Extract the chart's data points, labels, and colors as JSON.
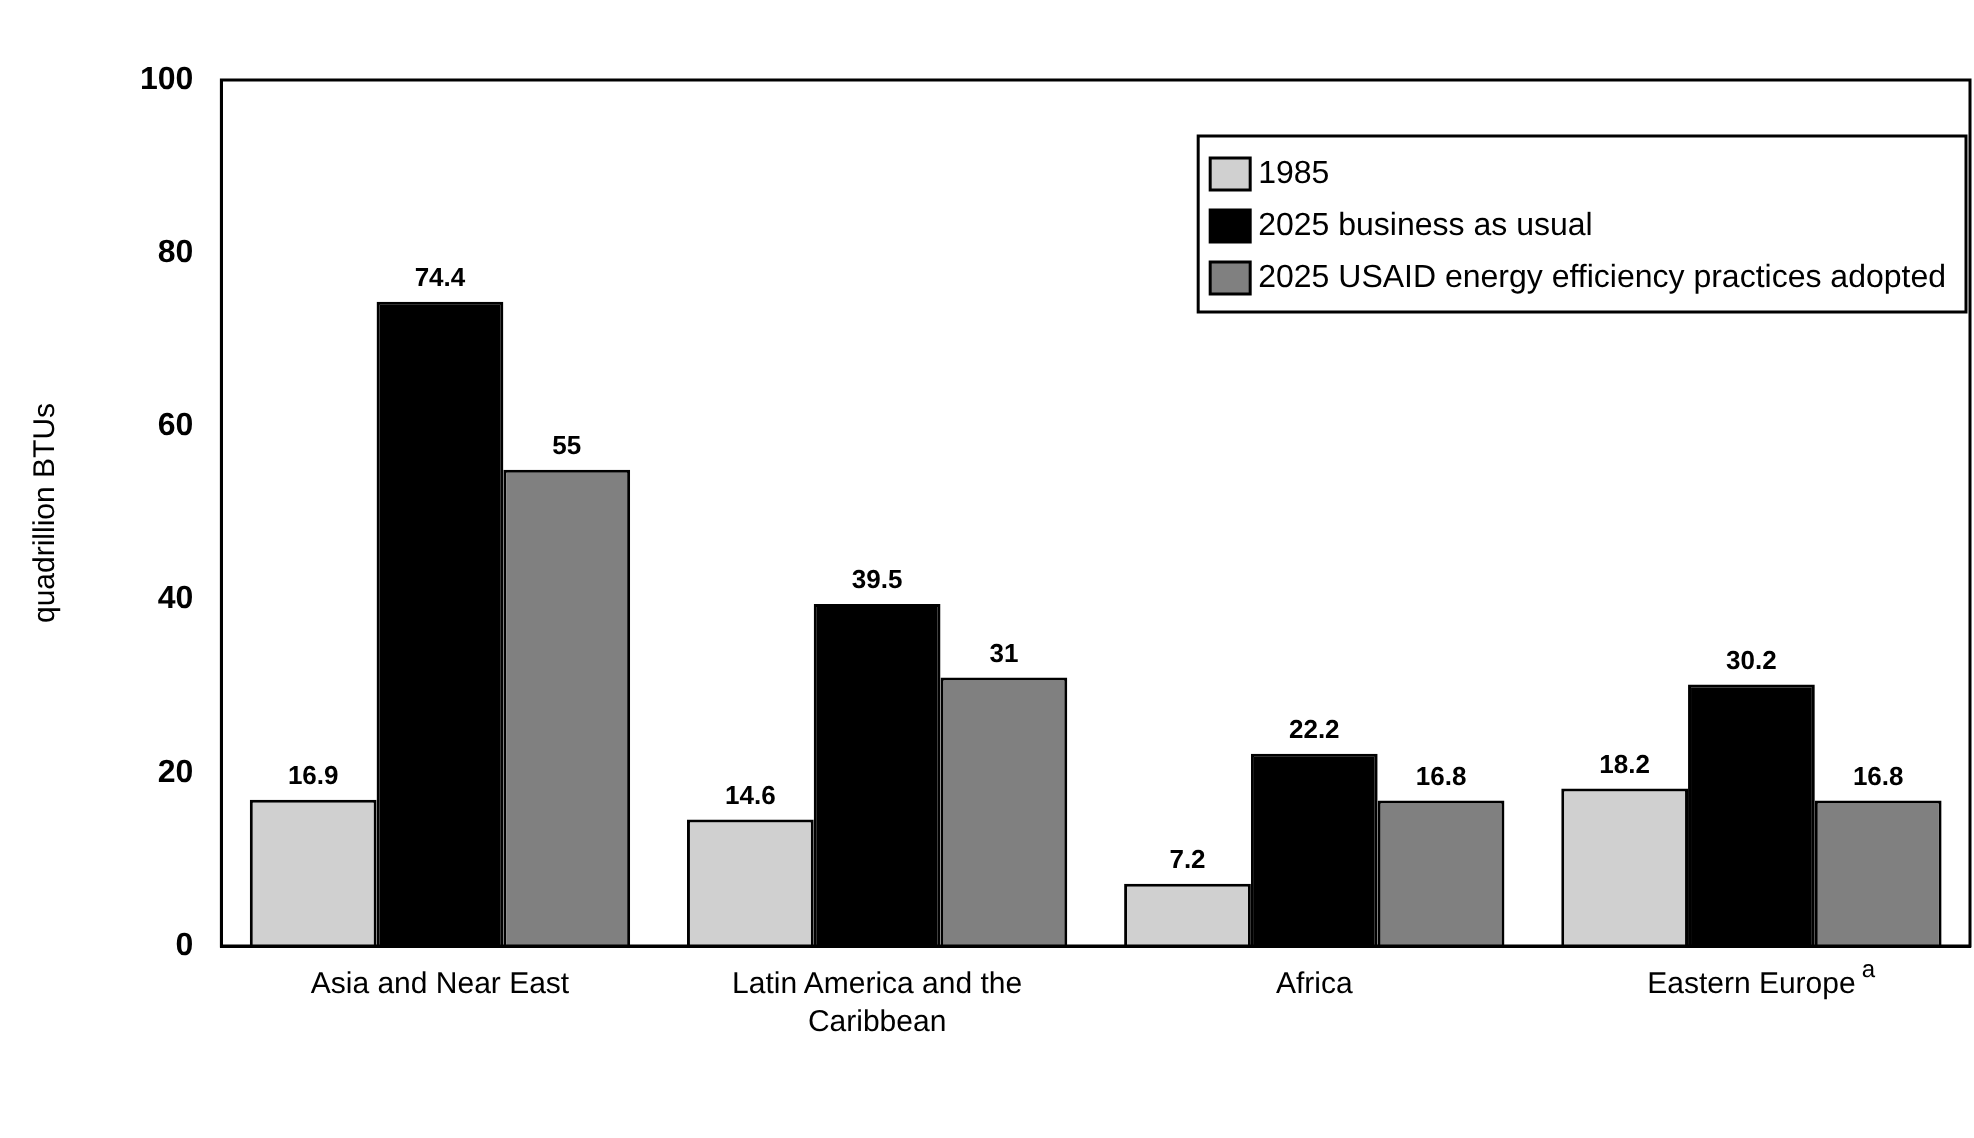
{
  "chart_data": {
    "type": "bar",
    "ylabel": "quadrillion BTUs",
    "categories": [
      "Asia and Near East",
      "Latin America and the Caribbean",
      "Africa",
      "Eastern Europe$^{a}$"
    ],
    "series": [
      {
        "name": "1985",
        "color": "#d0d0d0",
        "values": [
          16.9,
          14.6,
          7.2,
          18.2
        ]
      },
      {
        "name": "2025 business as usual",
        "color": "#000000",
        "values": [
          74.4,
          39.5,
          22.2,
          30.2
        ]
      },
      {
        "name": "2025 USAID energy efficiency practices adopted",
        "color": "#808080",
        "values": [
          55,
          31,
          16.8,
          16.8
        ]
      }
    ],
    "ylim": [
      0,
      100
    ],
    "yticks": [
      0,
      20,
      40,
      60,
      80,
      100
    ],
    "grid": false,
    "legend": "top right",
    "data_labels": true
  }
}
